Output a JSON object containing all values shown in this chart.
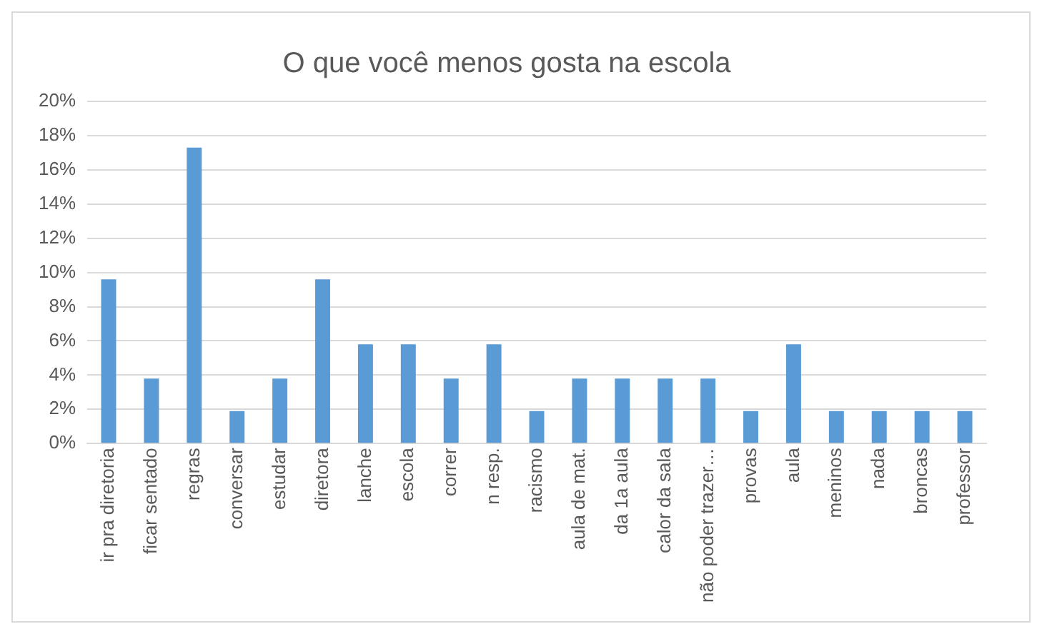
{
  "chart_data": {
    "type": "bar",
    "title": "O que você menos gosta na escola",
    "categories": [
      "ir pra diretoria",
      "ficar sentado",
      "regras",
      "conversar",
      "estudar",
      "diretora",
      "lanche",
      "escola",
      "correr",
      "n resp.",
      "racismo",
      "aula de mat.",
      "da 1a aula",
      "calor da sala",
      "não poder trazer…",
      "provas",
      "aula",
      "meninos",
      "nada",
      "broncas",
      "professor"
    ],
    "values": [
      9.6,
      3.8,
      17.3,
      1.9,
      3.8,
      9.6,
      5.8,
      5.8,
      3.8,
      5.8,
      1.9,
      3.8,
      3.8,
      3.8,
      3.8,
      1.9,
      5.8,
      1.9,
      1.9,
      1.9,
      1.9
    ],
    "color": "#5b9bd5",
    "ylim": [
      0,
      20
    ],
    "yticks": [
      {
        "value": 0,
        "label": "0%"
      },
      {
        "value": 2,
        "label": "2%"
      },
      {
        "value": 4,
        "label": "4%"
      },
      {
        "value": 6,
        "label": "6%"
      },
      {
        "value": 8,
        "label": "8%"
      },
      {
        "value": 10,
        "label": "10%"
      },
      {
        "value": 12,
        "label": "12%"
      },
      {
        "value": 14,
        "label": "14%"
      },
      {
        "value": 16,
        "label": "16%"
      },
      {
        "value": 18,
        "label": "18%"
      },
      {
        "value": 20,
        "label": "20%"
      }
    ],
    "grid": "y",
    "legend": false
  }
}
